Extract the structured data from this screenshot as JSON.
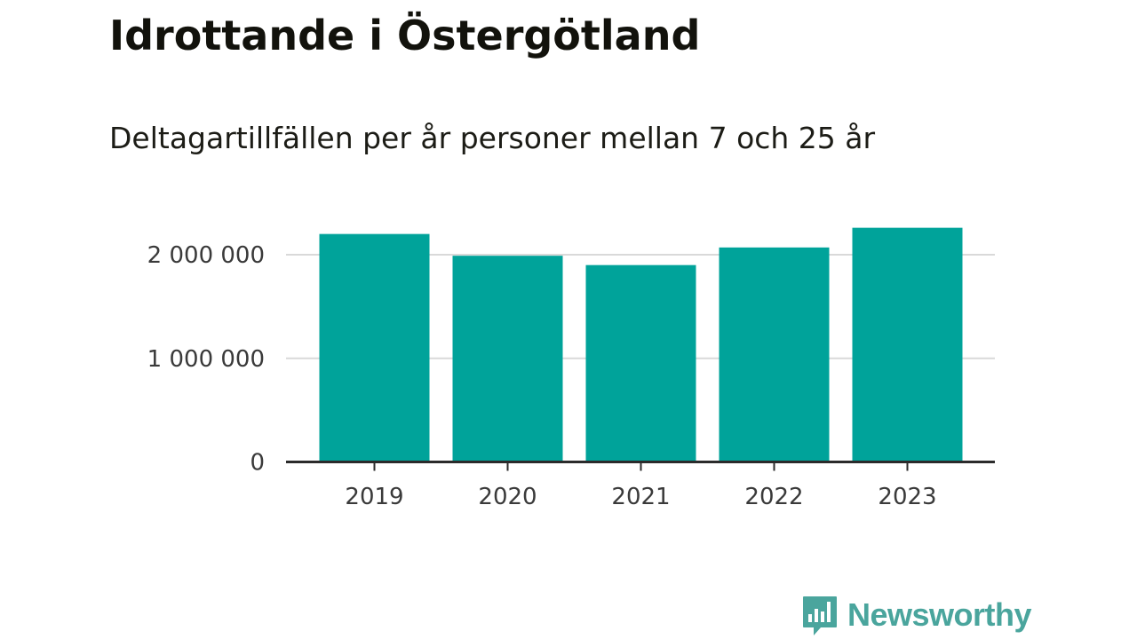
{
  "header": {
    "title": "Idrottande i Östergötland",
    "subtitle": "Deltagartillfällen per år personer mellan 7 och 25 år"
  },
  "chart_data": {
    "type": "bar",
    "categories": [
      "2019",
      "2020",
      "2021",
      "2022",
      "2023"
    ],
    "values": [
      2200000,
      1990000,
      1900000,
      2070000,
      2260000
    ],
    "ylim": [
      0,
      2300000
    ],
    "yticks": [
      0,
      1000000,
      2000000
    ],
    "ytick_labels": [
      "0",
      "1 000 000",
      "2 000 000"
    ],
    "grid": true,
    "bar_color": "#00a39a"
  },
  "footer": {
    "brand_name": "Newsworthy",
    "brand_icon": "chart-speech-bubble-icon",
    "brand_color": "#4aa59d"
  }
}
